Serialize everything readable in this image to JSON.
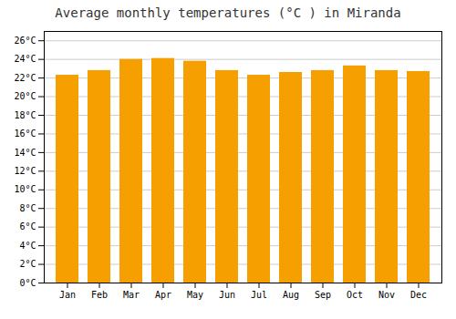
{
  "chart_data": {
    "type": "bar",
    "title": "Average monthly temperatures (°C ) in Miranda",
    "categories": [
      "Jan",
      "Feb",
      "Mar",
      "Apr",
      "May",
      "Jun",
      "Jul",
      "Aug",
      "Sep",
      "Oct",
      "Nov",
      "Dec"
    ],
    "values": [
      22.3,
      22.8,
      24.0,
      24.1,
      23.8,
      22.8,
      22.3,
      22.6,
      22.8,
      23.3,
      22.8,
      22.7
    ],
    "color": "#F5A000",
    "ylim": [
      0,
      27
    ],
    "yticks": [
      {
        "value": 0,
        "label": "0°C"
      },
      {
        "value": 2,
        "label": "2°C"
      },
      {
        "value": 4,
        "label": "4°C"
      },
      {
        "value": 6,
        "label": "6°C"
      },
      {
        "value": 8,
        "label": "8°C"
      },
      {
        "value": 10,
        "label": "10°C"
      },
      {
        "value": 12,
        "label": "12°C"
      },
      {
        "value": 14,
        "label": "14°C"
      },
      {
        "value": 16,
        "label": "16°C"
      },
      {
        "value": 18,
        "label": "18°C"
      },
      {
        "value": 20,
        "label": "20°C"
      },
      {
        "value": 22,
        "label": "22°C"
      },
      {
        "value": 24,
        "label": "24°C"
      },
      {
        "value": 26,
        "label": "26°C"
      }
    ],
    "grid": true
  }
}
